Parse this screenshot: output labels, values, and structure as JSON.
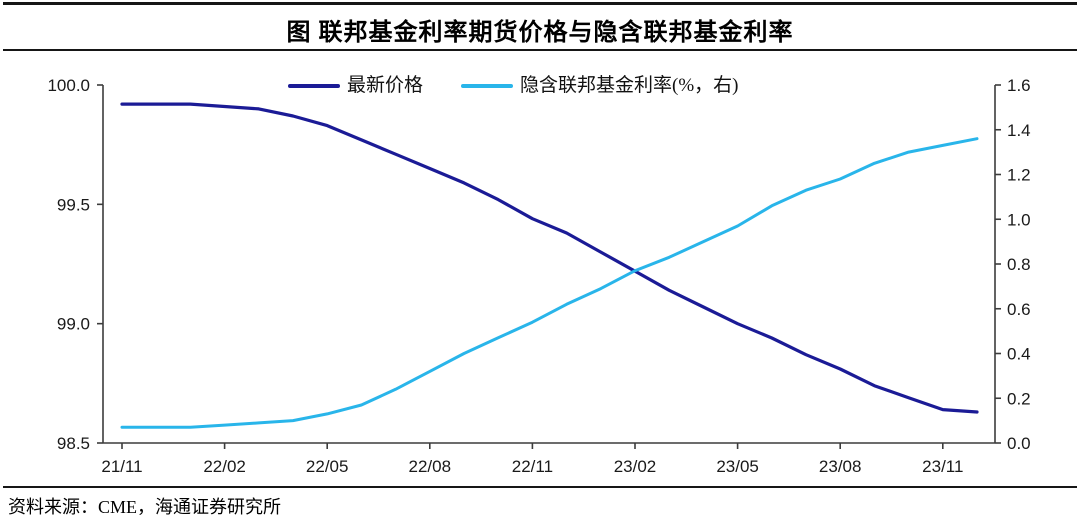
{
  "header": {
    "title": "图 联邦基金利率期货价格与隐含联邦基金利率"
  },
  "footer": {
    "source": "资料来源：CME，海通证券研究所"
  },
  "chart_data": {
    "type": "line",
    "title": "图 联邦基金利率期货价格与隐含联邦基金利率",
    "x_monthly": [
      "21/11",
      "21/12",
      "22/01",
      "22/02",
      "22/03",
      "22/04",
      "22/05",
      "22/06",
      "22/07",
      "22/08",
      "22/09",
      "22/10",
      "22/11",
      "22/12",
      "23/01",
      "23/02",
      "23/03",
      "23/04",
      "23/05",
      "23/06",
      "23/07",
      "23/08",
      "23/09",
      "23/10",
      "23/11",
      "23/12"
    ],
    "x_tick_labels": [
      "21/11",
      "22/02",
      "22/05",
      "22/08",
      "22/11",
      "23/02",
      "23/05",
      "23/08",
      "23/11"
    ],
    "x_tick_every": 3,
    "series": [
      {
        "name": "最新价格",
        "axis": "left",
        "color": "#1b1b96",
        "values": [
          99.92,
          99.92,
          99.92,
          99.91,
          99.9,
          99.87,
          99.83,
          99.77,
          99.71,
          99.65,
          99.59,
          99.52,
          99.44,
          99.38,
          99.3,
          99.22,
          99.14,
          99.07,
          99.0,
          98.94,
          98.87,
          98.81,
          98.74,
          98.69,
          98.64,
          98.63
        ]
      },
      {
        "name": "隐含联邦基金利率(%，右)",
        "axis": "right",
        "color": "#29b5ea",
        "values": [
          0.07,
          0.07,
          0.07,
          0.08,
          0.09,
          0.1,
          0.13,
          0.17,
          0.24,
          0.32,
          0.4,
          0.47,
          0.54,
          0.62,
          0.69,
          0.77,
          0.83,
          0.9,
          0.97,
          1.06,
          1.13,
          1.18,
          1.25,
          1.3,
          1.33,
          1.36
        ]
      }
    ],
    "left_axis": {
      "min": 98.5,
      "max": 100.0,
      "ticks": [
        "100.0",
        "99.5",
        "99.0",
        "98.5"
      ]
    },
    "right_axis": {
      "min": 0.0,
      "max": 1.6,
      "ticks": [
        "1.6",
        "1.4",
        "1.2",
        "1.0",
        "0.8",
        "0.6",
        "0.4",
        "0.2",
        "0.0"
      ]
    },
    "grid": false,
    "legend_position": "top-center",
    "axis_color": "#3c3c3c",
    "tick_label_color": "#1a1a1a"
  }
}
